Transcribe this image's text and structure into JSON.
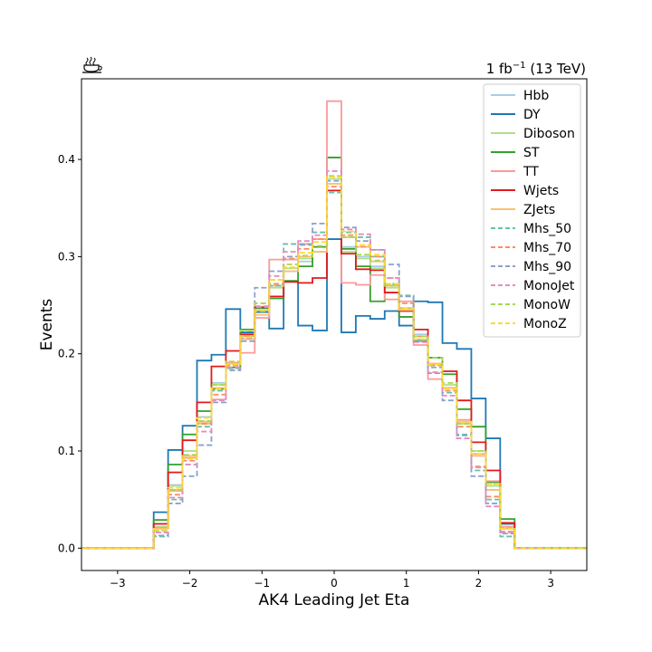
{
  "lumi_label": {
    "prefix": "1 fb",
    "sup": "−1",
    "suffix": " (13 TeV)"
  },
  "chart_data": {
    "type": "line",
    "style": "step-histogram",
    "xlabel": "AK4 Leading Jet Eta",
    "ylabel": "Events",
    "xlim": [
      -3.5,
      3.5
    ],
    "ylim": [
      -0.023,
      0.483
    ],
    "xticks": [
      -3,
      -2,
      -1,
      0,
      1,
      2,
      3
    ],
    "xtick_labels": [
      "−3",
      "−2",
      "−1",
      "0",
      "1",
      "2",
      "3"
    ],
    "yticks": [
      0.0,
      0.1,
      0.2,
      0.3,
      0.4
    ],
    "ytick_labels": [
      "0.0",
      "0.1",
      "0.2",
      "0.3",
      "0.4"
    ],
    "grid": false,
    "legend_position": "top-right",
    "bin_edges": [
      -3.5,
      -2.5,
      -2.3,
      -2.1,
      -1.9,
      -1.7,
      -1.5,
      -1.3,
      -1.1,
      -0.9,
      -0.7,
      -0.5,
      -0.3,
      -0.1,
      0.1,
      0.3,
      0.5,
      0.7,
      0.9,
      1.1,
      1.3,
      1.5,
      1.7,
      1.9,
      2.1,
      2.3,
      2.5,
      3.5
    ],
    "series": [
      {
        "name": "Hbb",
        "color": "#a6cee3",
        "dashed": false,
        "values": [
          0,
          0.025,
          0.065,
          0.1,
          0.135,
          0.17,
          0.19,
          0.22,
          0.245,
          0.27,
          0.285,
          0.295,
          0.305,
          0.375,
          0.31,
          0.3,
          0.29,
          0.27,
          0.245,
          0.22,
          0.19,
          0.165,
          0.13,
          0.095,
          0.06,
          0.025,
          0
        ]
      },
      {
        "name": "DY",
        "color": "#1f78b4",
        "dashed": false,
        "values": [
          0,
          0.037,
          0.101,
          0.126,
          0.193,
          0.199,
          0.246,
          0.222,
          0.243,
          0.226,
          0.274,
          0.229,
          0.224,
          0.318,
          0.222,
          0.239,
          0.236,
          0.244,
          0.229,
          0.254,
          0.253,
          0.211,
          0.205,
          0.154,
          0.113,
          0.025,
          0
        ]
      },
      {
        "name": "Diboson",
        "color": "#b2df8a",
        "dashed": false,
        "values": [
          0,
          0.022,
          0.064,
          0.1,
          0.128,
          0.168,
          0.19,
          0.218,
          0.245,
          0.268,
          0.288,
          0.298,
          0.305,
          0.38,
          0.305,
          0.298,
          0.288,
          0.268,
          0.245,
          0.218,
          0.19,
          0.168,
          0.128,
          0.1,
          0.064,
          0.022,
          0
        ]
      },
      {
        "name": "ST",
        "color": "#33a02c",
        "dashed": false,
        "values": [
          0,
          0.029,
          0.086,
          0.117,
          0.141,
          0.164,
          0.186,
          0.225,
          0.247,
          0.257,
          0.275,
          0.29,
          0.31,
          0.402,
          0.308,
          0.29,
          0.254,
          0.27,
          0.238,
          0.213,
          0.196,
          0.179,
          0.143,
          0.125,
          0.068,
          0.03,
          0
        ]
      },
      {
        "name": "TT",
        "color": "#fb9a99",
        "dashed": false,
        "values": [
          0,
          0.021,
          0.059,
          0.093,
          0.13,
          0.153,
          0.191,
          0.201,
          0.237,
          0.297,
          0.297,
          0.313,
          0.318,
          0.46,
          0.273,
          0.271,
          0.281,
          0.256,
          0.254,
          0.209,
          0.174,
          0.165,
          0.132,
          0.097,
          0.069,
          0.022,
          0
        ]
      },
      {
        "name": "Wjets",
        "color": "#e31a1c",
        "dashed": false,
        "values": [
          0,
          0.025,
          0.078,
          0.111,
          0.15,
          0.187,
          0.203,
          0.22,
          0.248,
          0.259,
          0.274,
          0.273,
          0.278,
          0.368,
          0.303,
          0.287,
          0.286,
          0.263,
          0.244,
          0.225,
          0.19,
          0.182,
          0.152,
          0.109,
          0.08,
          0.026,
          0
        ]
      },
      {
        "name": "ZJets",
        "color": "#fdbf6f",
        "dashed": false,
        "values": [
          0,
          0.02,
          0.06,
          0.095,
          0.13,
          0.165,
          0.19,
          0.215,
          0.24,
          0.27,
          0.285,
          0.3,
          0.305,
          0.375,
          0.32,
          0.31,
          0.295,
          0.27,
          0.245,
          0.215,
          0.19,
          0.165,
          0.13,
          0.095,
          0.06,
          0.02,
          0
        ]
      },
      {
        "name": "Mhs_50",
        "color": "#66c2a5",
        "dashed": true,
        "values": [
          0,
          0.012,
          0.05,
          0.086,
          0.125,
          0.162,
          0.185,
          0.216,
          0.252,
          0.27,
          0.313,
          0.313,
          0.325,
          0.366,
          0.325,
          0.32,
          0.3,
          0.272,
          0.26,
          0.214,
          0.186,
          0.16,
          0.117,
          0.08,
          0.05,
          0.012,
          0
        ]
      },
      {
        "name": "Mhs_70",
        "color": "#fc8d62",
        "dashed": true,
        "values": [
          0,
          0.016,
          0.055,
          0.09,
          0.128,
          0.158,
          0.188,
          0.218,
          0.248,
          0.272,
          0.298,
          0.308,
          0.318,
          0.372,
          0.322,
          0.31,
          0.3,
          0.278,
          0.252,
          0.218,
          0.188,
          0.162,
          0.125,
          0.084,
          0.053,
          0.017,
          0
        ]
      },
      {
        "name": "Mhs_90",
        "color": "#8da0cb",
        "dashed": true,
        "values": [
          0,
          0.013,
          0.046,
          0.074,
          0.106,
          0.15,
          0.183,
          0.213,
          0.268,
          0.285,
          0.3,
          0.312,
          0.334,
          0.378,
          0.33,
          0.316,
          0.307,
          0.292,
          0.259,
          0.213,
          0.18,
          0.152,
          0.116,
          0.074,
          0.046,
          0.015,
          0
        ]
      },
      {
        "name": "MonoJet",
        "color": "#e78ac3",
        "dashed": true,
        "values": [
          0,
          0.016,
          0.052,
          0.086,
          0.12,
          0.152,
          0.186,
          0.216,
          0.249,
          0.28,
          0.305,
          0.316,
          0.322,
          0.388,
          0.328,
          0.323,
          0.307,
          0.278,
          0.247,
          0.212,
          0.181,
          0.157,
          0.113,
          0.083,
          0.043,
          0.016,
          0
        ]
      },
      {
        "name": "MonoW",
        "color": "#a6d854",
        "dashed": true,
        "values": [
          0,
          0.018,
          0.06,
          0.096,
          0.131,
          0.168,
          0.192,
          0.224,
          0.252,
          0.276,
          0.292,
          0.301,
          0.311,
          0.383,
          0.32,
          0.302,
          0.296,
          0.27,
          0.247,
          0.218,
          0.196,
          0.17,
          0.128,
          0.1,
          0.066,
          0.021,
          0
        ]
      },
      {
        "name": "MonoZ",
        "color": "#ffd92f",
        "dashed": true,
        "values": [
          0,
          0.019,
          0.062,
          0.092,
          0.134,
          0.164,
          0.189,
          0.217,
          0.244,
          0.276,
          0.289,
          0.304,
          0.315,
          0.382,
          0.326,
          0.312,
          0.302,
          0.272,
          0.247,
          0.215,
          0.189,
          0.164,
          0.13,
          0.097,
          0.066,
          0.02,
          0
        ]
      }
    ]
  }
}
